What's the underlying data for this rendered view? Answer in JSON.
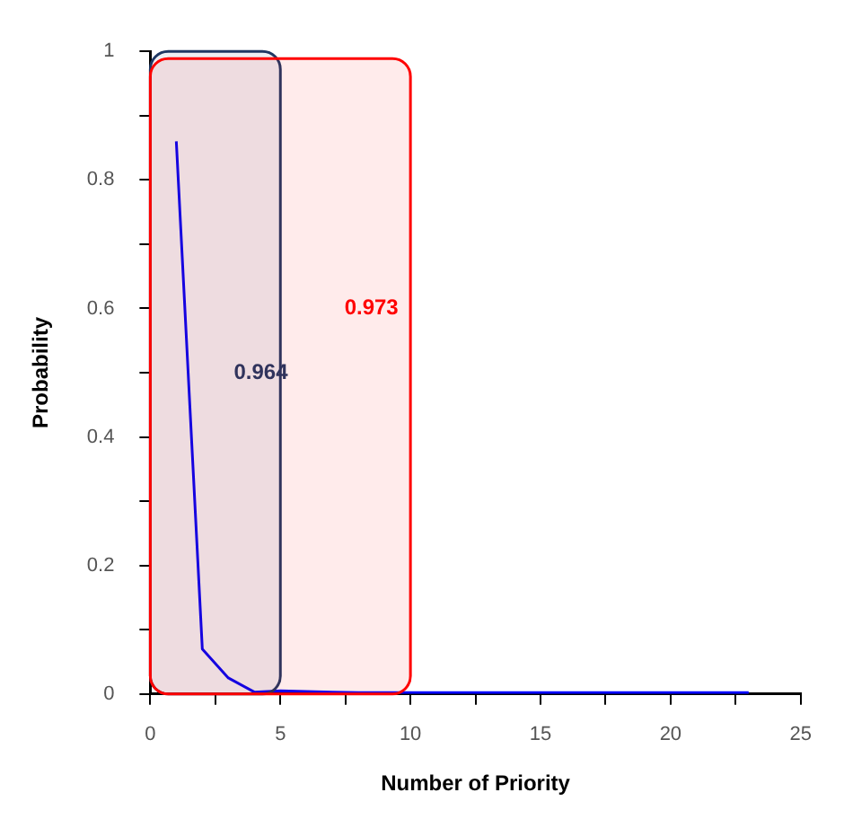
{
  "chart_data": {
    "type": "line",
    "xlabel": "Number of Priority",
    "ylabel": "Probability",
    "x": [
      1,
      2,
      3,
      4,
      5,
      6,
      7,
      8,
      9,
      10,
      11,
      12,
      13,
      14,
      15,
      16,
      17,
      18,
      19,
      20,
      21,
      22,
      23
    ],
    "series": [
      {
        "color": "#0000ff",
        "values": [
          0.86,
          0.07,
          0.025,
          0.003,
          0.005,
          0.004,
          0.003,
          0.002,
          0.002,
          0.002,
          0.002,
          0.002,
          0.002,
          0.002,
          0.002,
          0.002,
          0.002,
          0.002,
          0.002,
          0.002,
          0.002,
          0.002,
          0.002
        ]
      }
    ],
    "xlim": [
      0,
      25
    ],
    "ylim": [
      0,
      1
    ],
    "xticks": [
      0,
      {
        "value": 2.5,
        "label": null
      },
      5,
      {
        "value": 7.5,
        "label": null
      },
      10,
      {
        "value": 12.5,
        "label": null
      },
      15,
      {
        "value": 17.5,
        "label": null
      },
      20,
      {
        "value": 22.5,
        "label": null
      },
      25
    ],
    "yticks": [
      0,
      {
        "value": 0.1,
        "label": null
      },
      {
        "value": 0.2,
        "label": "0.2"
      },
      {
        "value": 0.3,
        "label": null
      },
      {
        "value": 0.4,
        "label": "0.4"
      },
      {
        "value": 0.5,
        "label": null
      },
      {
        "value": 0.6,
        "label": "0.6"
      },
      {
        "value": 0.7,
        "label": null
      },
      {
        "value": 0.8,
        "label": "0.8"
      },
      {
        "value": 0.9,
        "label": null
      },
      1
    ],
    "bands": [
      {
        "axis": "x",
        "from": 0,
        "to": 5,
        "label": "0.964",
        "color": "#1f3864"
      },
      {
        "axis": "x",
        "from": 0,
        "to": 10,
        "label": "0.973",
        "color": "#ff0000"
      }
    ],
    "grid": false,
    "legend": false,
    "marker": "none",
    "line_style": "solid"
  }
}
